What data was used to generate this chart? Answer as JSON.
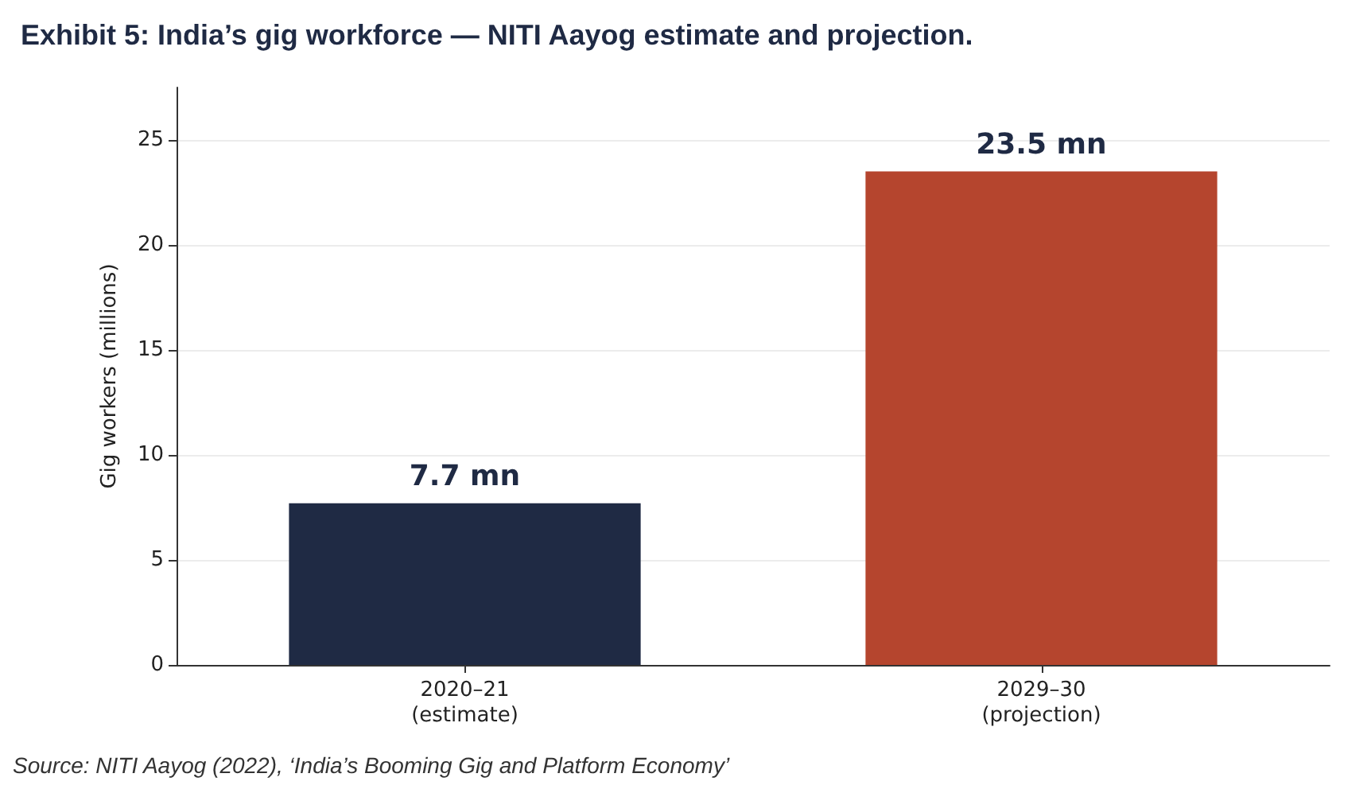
{
  "chart_data": {
    "type": "bar",
    "title": "Exhibit 5: India’s gig workforce — NITI Aayog estimate and projection.",
    "ylabel": "Gig workers (millions)",
    "categories": [
      "2020–21\n(estimate)",
      "2029–30\n(projection)"
    ],
    "values": [
      7.7,
      23.5
    ],
    "colors": [
      "#1f2a44",
      "#b5452e"
    ],
    "value_labels": [
      "7.7 mn",
      "23.5 mn"
    ],
    "ylim": [
      0,
      27.5
    ],
    "yticks": [
      0,
      5,
      10,
      15,
      20,
      25
    ],
    "grid": "y",
    "annotations": [
      "Source: NITI Aayog (2022), ‘India’s Booming Gig and Platform Economy’"
    ]
  }
}
